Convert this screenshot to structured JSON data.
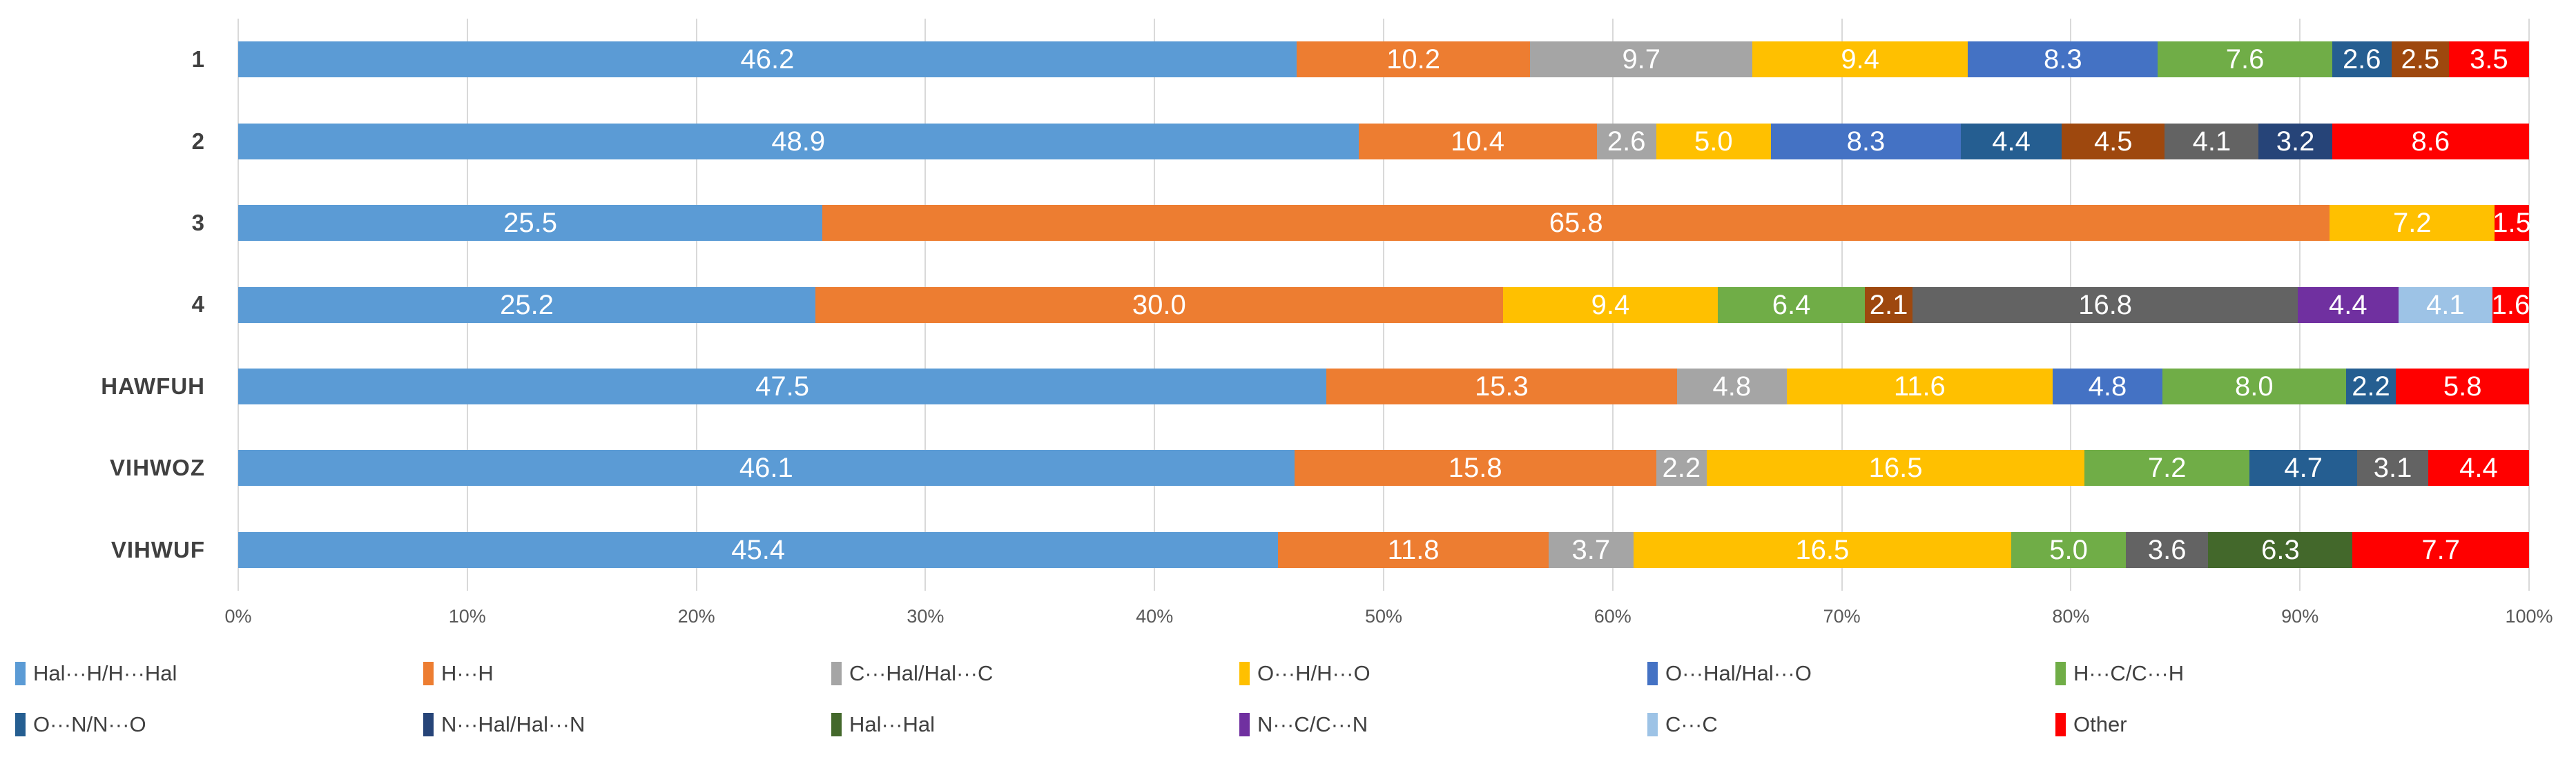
{
  "chart_data": {
    "type": "bar",
    "subtype": "horizontal-stacked-100-percent",
    "title": "",
    "xlabel": "",
    "ylabel": "",
    "grid": true,
    "legend_position": "bottom",
    "x_axis": {
      "min": 0,
      "max": 100,
      "tick_step": 10,
      "tick_labels": [
        "0%",
        "10%",
        "20%",
        "30%",
        "40%",
        "50%",
        "60%",
        "70%",
        "80%",
        "90%",
        "100%"
      ]
    },
    "categories": [
      "1",
      "2",
      "3",
      "4",
      "HAWFUH",
      "VIHWOZ",
      "VIHWUF"
    ],
    "legend": [
      {
        "label": "Hal···H/H···Hal",
        "color": "#5B9BD5"
      },
      {
        "label": "H···H",
        "color": "#ED7D31"
      },
      {
        "label": "C···Hal/Hal···C",
        "color": "#A5A5A5"
      },
      {
        "label": "O···H/H···O",
        "color": "#FFC000"
      },
      {
        "label": "O···Hal/Hal···O",
        "color": "#4472C4"
      },
      {
        "label": "H···C/C···H",
        "color": "#70AD47"
      },
      {
        "label": "O···N/N···O",
        "color": "#255E91"
      },
      {
        "label": "N···Hal/Hal···N",
        "color": "#264478"
      },
      {
        "label": "Hal···Hal",
        "color": "#43682B"
      },
      {
        "label": "N···C/C···N",
        "color": "#7030A0"
      },
      {
        "label": "C···C",
        "color": "#9DC3E6"
      },
      {
        "label": "Other",
        "color": "#FF0000"
      }
    ],
    "rows": [
      {
        "category": "1",
        "segments": [
          {
            "series": "Hal···H/H···Hal",
            "color": "#5B9BD5",
            "value": 46.2
          },
          {
            "series": "H···H",
            "color": "#ED7D31",
            "value": 10.2
          },
          {
            "series": "C···Hal/Hal···C",
            "color": "#A5A5A5",
            "value": 9.7
          },
          {
            "series": "O···H/H···O",
            "color": "#FFC000",
            "value": 9.4
          },
          {
            "series": "O···Hal/Hal···O",
            "color": "#4472C4",
            "value": 8.3
          },
          {
            "series": "H···C/C···H",
            "color": "#70AD47",
            "value": 7.6
          },
          {
            "series": "O···N/N···O",
            "color": "#255E91",
            "value": 2.6
          },
          {
            "series": "unlabeled-brown",
            "color": "#9E480E",
            "value": 2.5
          },
          {
            "series": "Other",
            "color": "#FF0000",
            "value": 3.5
          }
        ]
      },
      {
        "category": "2",
        "segments": [
          {
            "series": "Hal···H/H···Hal",
            "color": "#5B9BD5",
            "value": 48.9
          },
          {
            "series": "H···H",
            "color": "#ED7D31",
            "value": 10.4
          },
          {
            "series": "C···Hal/Hal···C",
            "color": "#A5A5A5",
            "value": 2.6
          },
          {
            "series": "O···H/H···O",
            "color": "#FFC000",
            "value": 5.0
          },
          {
            "series": "O···Hal/Hal···O",
            "color": "#4472C4",
            "value": 8.3
          },
          {
            "series": "O···N/N···O",
            "color": "#255E91",
            "value": 4.4
          },
          {
            "series": "unlabeled-brown",
            "color": "#9E480E",
            "value": 4.5
          },
          {
            "series": "unlabeled-dark-gray",
            "color": "#636363",
            "value": 4.1
          },
          {
            "series": "N···Hal/Hal···N",
            "color": "#264478",
            "value": 3.2
          },
          {
            "series": "Other",
            "color": "#FF0000",
            "value": 8.6
          }
        ]
      },
      {
        "category": "3",
        "segments": [
          {
            "series": "Hal···H/H···Hal",
            "color": "#5B9BD5",
            "value": 25.5
          },
          {
            "series": "H···H",
            "color": "#ED7D31",
            "value": 65.8
          },
          {
            "series": "O···H/H···O",
            "color": "#FFC000",
            "value": 7.2
          },
          {
            "series": "Other",
            "color": "#FF0000",
            "value": 1.5
          }
        ]
      },
      {
        "category": "4",
        "segments": [
          {
            "series": "Hal···H/H···Hal",
            "color": "#5B9BD5",
            "value": 25.2
          },
          {
            "series": "H···H",
            "color": "#ED7D31",
            "value": 30.0
          },
          {
            "series": "O···H/H···O",
            "color": "#FFC000",
            "value": 9.4
          },
          {
            "series": "H···C/C···H",
            "color": "#70AD47",
            "value": 6.4
          },
          {
            "series": "unlabeled-brown",
            "color": "#9E480E",
            "value": 2.1
          },
          {
            "series": "unlabeled-dark-gray",
            "color": "#636363",
            "value": 16.8
          },
          {
            "series": "N···C/C···N",
            "color": "#7030A0",
            "value": 4.4
          },
          {
            "series": "C···C",
            "color": "#9DC3E6",
            "value": 4.1
          },
          {
            "series": "Other",
            "color": "#FF0000",
            "value": 1.6
          }
        ]
      },
      {
        "category": "HAWFUH",
        "segments": [
          {
            "series": "Hal···H/H···Hal",
            "color": "#5B9BD5",
            "value": 47.5
          },
          {
            "series": "H···H",
            "color": "#ED7D31",
            "value": 15.3
          },
          {
            "series": "C···Hal/Hal···C",
            "color": "#A5A5A5",
            "value": 4.8
          },
          {
            "series": "O···H/H···O",
            "color": "#FFC000",
            "value": 11.6
          },
          {
            "series": "O···Hal/Hal···O",
            "color": "#4472C4",
            "value": 4.8
          },
          {
            "series": "H···C/C···H",
            "color": "#70AD47",
            "value": 8.0
          },
          {
            "series": "O···N/N···O",
            "color": "#255E91",
            "value": 2.2
          },
          {
            "series": "Other",
            "color": "#FF0000",
            "value": 5.8
          }
        ]
      },
      {
        "category": "VIHWOZ",
        "segments": [
          {
            "series": "Hal···H/H···Hal",
            "color": "#5B9BD5",
            "value": 46.1
          },
          {
            "series": "H···H",
            "color": "#ED7D31",
            "value": 15.8
          },
          {
            "series": "C···Hal/Hal···C",
            "color": "#A5A5A5",
            "value": 2.2
          },
          {
            "series": "O···H/H···O",
            "color": "#FFC000",
            "value": 16.5
          },
          {
            "series": "H···C/C···H",
            "color": "#70AD47",
            "value": 7.2
          },
          {
            "series": "O···N/N···O",
            "color": "#255E91",
            "value": 4.7
          },
          {
            "series": "unlabeled-dark-gray",
            "color": "#636363",
            "value": 3.1
          },
          {
            "series": "Other",
            "color": "#FF0000",
            "value": 4.4
          }
        ]
      },
      {
        "category": "VIHWUF",
        "segments": [
          {
            "series": "Hal···H/H···Hal",
            "color": "#5B9BD5",
            "value": 45.4
          },
          {
            "series": "H···H",
            "color": "#ED7D31",
            "value": 11.8
          },
          {
            "series": "C···Hal/Hal···C",
            "color": "#A5A5A5",
            "value": 3.7
          },
          {
            "series": "O···H/H···O",
            "color": "#FFC000",
            "value": 16.5
          },
          {
            "series": "H···C/C···H",
            "color": "#70AD47",
            "value": 5.0
          },
          {
            "series": "unlabeled-dark-gray",
            "color": "#636363",
            "value": 3.6
          },
          {
            "series": "Hal···Hal",
            "color": "#43682B",
            "value": 6.3
          },
          {
            "series": "Other",
            "color": "#FF0000",
            "value": 7.7
          }
        ]
      }
    ]
  },
  "style": {
    "background": "#FFFFFF",
    "grid_color": "#D9D9D9",
    "bar_label_color": "#FFFFFF",
    "axis_text_color": "#595959",
    "category_text_color": "#404040",
    "legend_text_color": "#404040"
  }
}
